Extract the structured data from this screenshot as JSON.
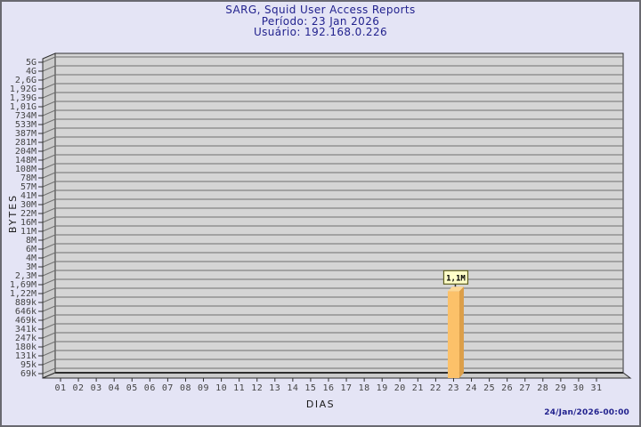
{
  "chart_data": {
    "type": "bar",
    "title": "SARG, Squid User Access Reports",
    "period": "Período: 23 Jan 2026",
    "user": "Usuário: 192.168.0.226",
    "xlabel": "DIAS",
    "ylabel": "BYTES",
    "generated": "24/Jan/2026-00:00",
    "y_scale": "log",
    "y_tick_labels": [
      "5G",
      "4G",
      "2,6G",
      "1,92G",
      "1,39G",
      "1,01G",
      "734M",
      "533M",
      "387M",
      "281M",
      "204M",
      "148M",
      "108M",
      "78M",
      "57M",
      "41M",
      "30M",
      "22M",
      "16M",
      "11M",
      "8M",
      "6M",
      "4M",
      "3M",
      "2,3M",
      "1,69M",
      "1,22M",
      "889k",
      "646k",
      "469k",
      "341k",
      "247k",
      "180k",
      "131k",
      "95k",
      "69k"
    ],
    "x_tick_labels": [
      "01",
      "02",
      "03",
      "04",
      "05",
      "06",
      "07",
      "08",
      "09",
      "10",
      "11",
      "12",
      "13",
      "14",
      "15",
      "16",
      "17",
      "18",
      "19",
      "20",
      "21",
      "22",
      "23",
      "24",
      "25",
      "26",
      "27",
      "28",
      "29",
      "30",
      "31"
    ],
    "bars": [
      {
        "x": "23",
        "value": 1100000,
        "label": "1,1M"
      }
    ],
    "colors": {
      "page_bg": "#E4E4F5",
      "frame_border": "#696970",
      "plot_bg": "#D5D5D5",
      "wall_bg": "#CBCBCB",
      "grid": "#707070",
      "axis_edge": "#2E2E2E",
      "tick_text": "#444444",
      "title_text": "#22228E",
      "bar_front": "#FCC169",
      "bar_side": "#DC9F49",
      "bar_top": "#FDD894",
      "flag_bg": "#FFFFC9",
      "flag_border": "#5F5F20",
      "flag_text": "#000000"
    }
  }
}
